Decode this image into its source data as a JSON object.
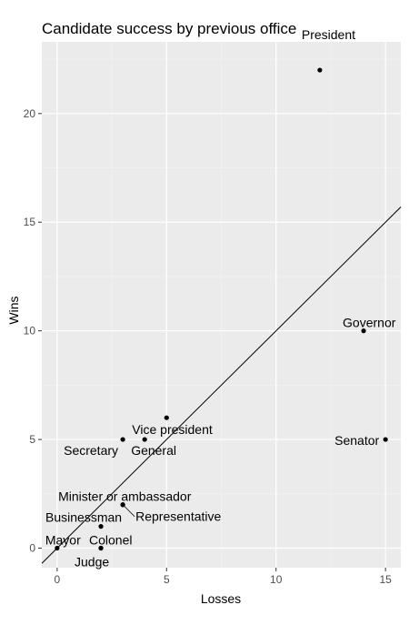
{
  "chart_data": {
    "type": "scatter",
    "title": "Candidate success by previous office",
    "xlabel": "Losses",
    "ylabel": "Wins",
    "xlim": [
      -0.7,
      15.7
    ],
    "ylim": [
      -0.9,
      23.3
    ],
    "x_ticks": [
      0,
      5,
      10,
      15
    ],
    "y_ticks": [
      0,
      5,
      10,
      15,
      20
    ],
    "grid": true,
    "legend": "none",
    "points": [
      {
        "label": "President",
        "x": 12,
        "y": 22
      },
      {
        "label": "Governor",
        "x": 14,
        "y": 10
      },
      {
        "label": "Senator",
        "x": 15,
        "y": 5
      },
      {
        "label": "Vice president",
        "x": 5,
        "y": 6
      },
      {
        "label": "General",
        "x": 4,
        "y": 5
      },
      {
        "label": "Secretary",
        "x": 3,
        "y": 5
      },
      {
        "label": "Minister or ambassador",
        "x": 3,
        "y": 2
      },
      {
        "label": "Representative",
        "x": 3,
        "y": 2
      },
      {
        "label": "Businessman",
        "x": 2,
        "y": 1
      },
      {
        "label": "Colonel",
        "x": 2,
        "y": 0
      },
      {
        "label": "Judge",
        "x": 2,
        "y": 0
      },
      {
        "label": "Mayor",
        "x": 0,
        "y": 0
      }
    ],
    "reference_line": {
      "type": "identity",
      "slope": 1,
      "intercept": 0
    }
  }
}
